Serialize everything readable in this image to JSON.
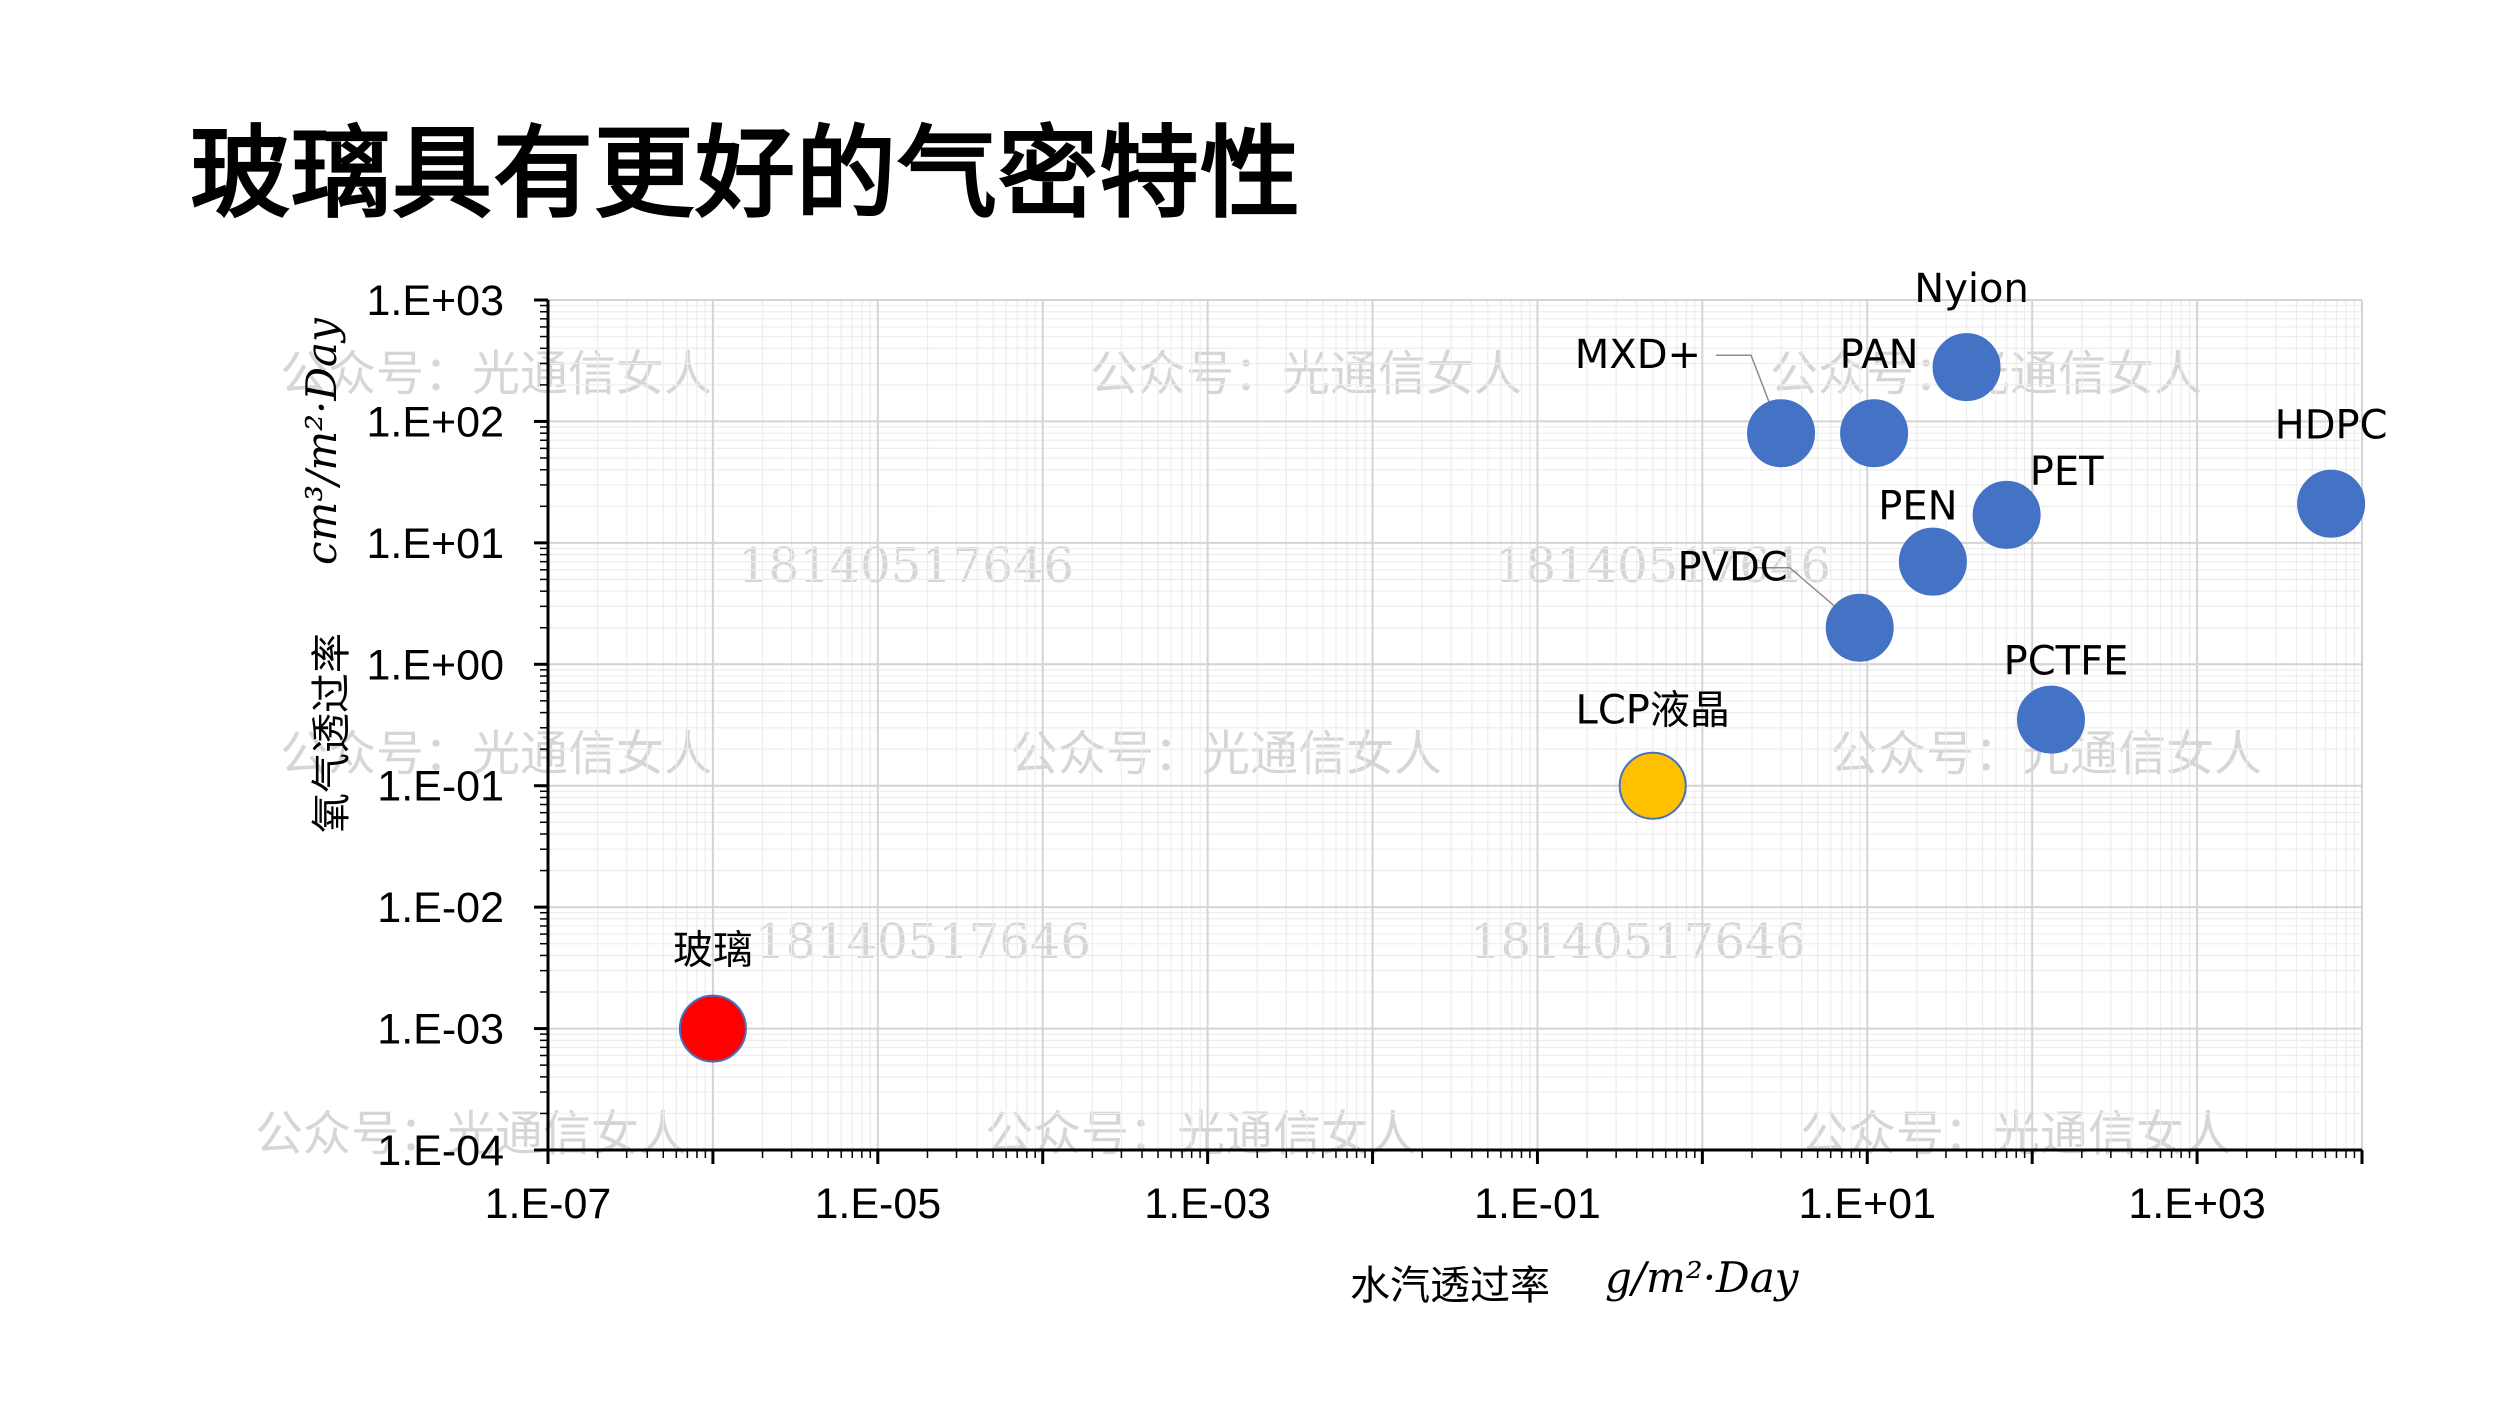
{
  "page": {
    "title": "玻璃具有更好的气密特性"
  },
  "watermarks": [
    "公众号：光通信女人",
    "18140517646"
  ],
  "chart_data": {
    "type": "scatter",
    "x_scale": "log",
    "y_scale": "log",
    "xlim": [
      1e-07,
      10000
    ],
    "ylim": [
      0.0001,
      1000
    ],
    "grid": true,
    "x_ticks": [
      "1.E-07",
      "1.E-05",
      "1.E-03",
      "1.E-01",
      "1.E+01",
      "1.E+03"
    ],
    "y_ticks": [
      "1.E+03",
      "1.E+02",
      "1.E+01",
      "1.E+00",
      "1.E-01",
      "1.E-02",
      "1.E-03",
      "1.E-04"
    ],
    "xlabel": "水汽透过率",
    "xlabel_unit": "g/m²·Day",
    "ylabel": "氧气透过率",
    "ylabel_unit": "cm³/m²·Day",
    "points": [
      {
        "label": "玻璃",
        "x": 1e-06,
        "y": 0.001,
        "color": "#ff0000"
      },
      {
        "label": "LCP液晶",
        "x": 0.5,
        "y": 0.1,
        "color": "#ffc000"
      },
      {
        "label": "MXD+",
        "x": 3,
        "y": 80,
        "color": "#4472c4"
      },
      {
        "label": "PAN",
        "x": 11,
        "y": 80,
        "color": "#4472c4"
      },
      {
        "label": "Nyion",
        "x": 40,
        "y": 280,
        "color": "#4472c4"
      },
      {
        "label": "PET",
        "x": 70,
        "y": 17,
        "color": "#4472c4"
      },
      {
        "label": "PEN",
        "x": 25,
        "y": 7,
        "color": "#4472c4"
      },
      {
        "label": "PVDC",
        "x": 9,
        "y": 2,
        "color": "#4472c4"
      },
      {
        "label": "PCTFE",
        "x": 130,
        "y": 0.35,
        "color": "#4472c4"
      },
      {
        "label": "HDPC",
        "x": 6500,
        "y": 21,
        "color": "#4472c4"
      }
    ]
  }
}
